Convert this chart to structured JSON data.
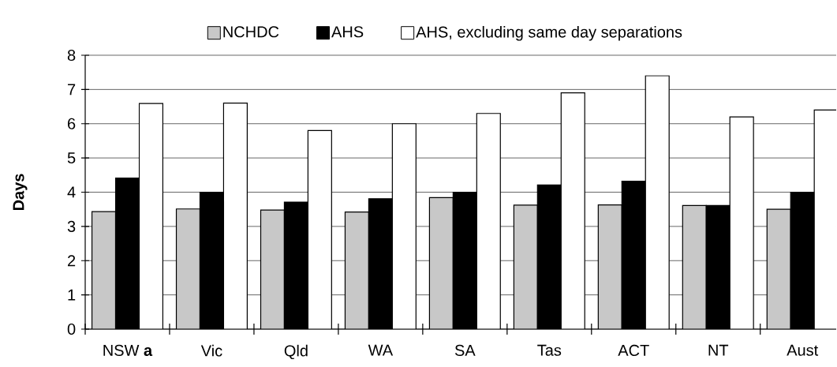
{
  "chart_data": {
    "type": "bar",
    "ylabel": "Days",
    "categories": [
      "NSW **a**",
      "Vic",
      "Qld",
      "WA",
      "SA",
      "Tas",
      "ACT",
      "NT",
      "Aust"
    ],
    "series": [
      {
        "name": "NCHDC",
        "color": "#c8c8c8",
        "values": [
          3.43,
          3.51,
          3.48,
          3.42,
          3.84,
          3.62,
          3.63,
          3.61,
          3.5
        ]
      },
      {
        "name": "AHS",
        "color": "#000000",
        "values": [
          4.41,
          4.0,
          3.71,
          3.81,
          4.0,
          4.21,
          4.32,
          3.61,
          4.0
        ]
      },
      {
        "name": "AHS, excluding same day separations",
        "color": "#ffffff",
        "values": [
          6.59,
          6.6,
          5.8,
          6.0,
          6.3,
          6.9,
          7.4,
          6.2,
          6.4
        ]
      }
    ],
    "ylim": [
      0,
      8
    ],
    "yticks": [
      0,
      1,
      2,
      3,
      4,
      5,
      6,
      7,
      8
    ],
    "grid": "y",
    "legend": "top"
  }
}
